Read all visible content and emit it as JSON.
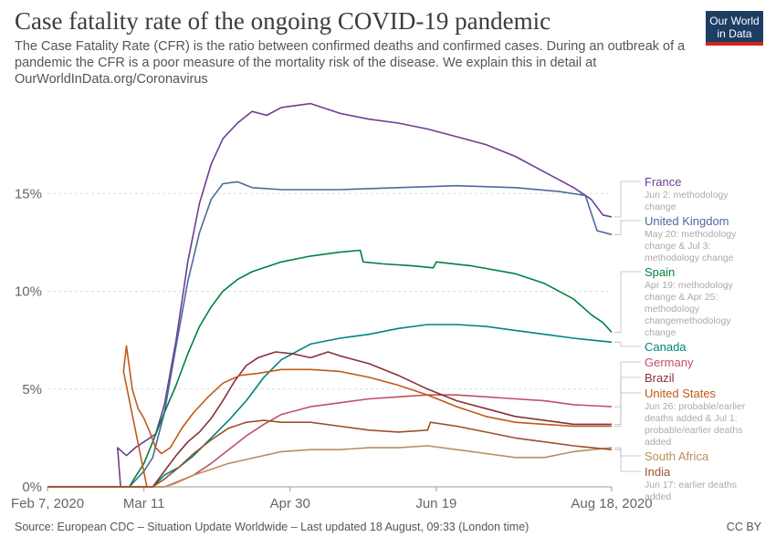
{
  "header": {
    "title": "Case fatality rate of the ongoing COVID-19 pandemic",
    "subtitle": "The Case Fatality Rate (CFR) is the ratio between confirmed deaths and confirmed cases. During an outbreak of a pandemic the CFR is a poor measure of the mortality risk of the disease. We explain this in detail at OurWorldInData.org/Coronavirus",
    "logo_line1": "Our World",
    "logo_line2": "in Data"
  },
  "footer": {
    "source": "Source: European CDC – Situation Update Worldwide – Last updated 18 August, 09:33 (London time)",
    "license": "CC BY"
  },
  "chart_data": {
    "type": "line",
    "title": "Case fatality rate of the ongoing COVID-19 pandemic",
    "xlabel": "",
    "ylabel": "",
    "x_unit": "days since Feb 7, 2020",
    "xlim": [
      0,
      193
    ],
    "ylim": [
      0,
      20
    ],
    "y_ticks": [
      0,
      5,
      10,
      15
    ],
    "y_tick_labels": [
      "0%",
      "5%",
      "10%",
      "15%"
    ],
    "x_ticks": [
      {
        "day": 0,
        "label": "Feb 7, 2020"
      },
      {
        "day": 33,
        "label": "Mar 11"
      },
      {
        "day": 83,
        "label": "Apr 30"
      },
      {
        "day": 133,
        "label": "Jun 19"
      },
      {
        "day": 193,
        "label": "Aug 18, 2020"
      }
    ],
    "grid": true,
    "series": [
      {
        "name": "France",
        "color": "#6d3e91",
        "points": [
          [
            0,
            0
          ],
          [
            25,
            0
          ],
          [
            24,
            2
          ],
          [
            27,
            1.6
          ],
          [
            30,
            2.0
          ],
          [
            33,
            2.3
          ],
          [
            37,
            2.7
          ],
          [
            40,
            4.2
          ],
          [
            44,
            7.5
          ],
          [
            48,
            11.5
          ],
          [
            52,
            14.5
          ],
          [
            56,
            16.5
          ],
          [
            60,
            17.8
          ],
          [
            65,
            18.6
          ],
          [
            70,
            19.2
          ],
          [
            75,
            19.0
          ],
          [
            80,
            19.4
          ],
          [
            90,
            19.6
          ],
          [
            100,
            19.1
          ],
          [
            110,
            18.8
          ],
          [
            120,
            18.6
          ],
          [
            130,
            18.3
          ],
          [
            140,
            17.9
          ],
          [
            150,
            17.5
          ],
          [
            160,
            16.9
          ],
          [
            170,
            16.1
          ],
          [
            180,
            15.3
          ],
          [
            186,
            14.7
          ],
          [
            190,
            13.9
          ],
          [
            193,
            13.8
          ]
        ],
        "annotation": [
          "Jun 2: methodology",
          "change"
        ]
      },
      {
        "name": "United Kingdom",
        "color": "#4c6a9c",
        "points": [
          [
            0,
            0
          ],
          [
            28,
            0
          ],
          [
            33,
            0.8
          ],
          [
            36,
            1.5
          ],
          [
            40,
            3.8
          ],
          [
            44,
            7.2
          ],
          [
            48,
            10.5
          ],
          [
            52,
            13.0
          ],
          [
            56,
            14.7
          ],
          [
            60,
            15.5
          ],
          [
            65,
            15.6
          ],
          [
            70,
            15.3
          ],
          [
            80,
            15.2
          ],
          [
            100,
            15.2
          ],
          [
            120,
            15.3
          ],
          [
            140,
            15.4
          ],
          [
            160,
            15.3
          ],
          [
            175,
            15.1
          ],
          [
            184,
            14.9
          ],
          [
            188,
            13.1
          ],
          [
            193,
            12.9
          ]
        ],
        "annotation": [
          "May 20: methodology",
          "change & Jul 3:",
          "methodology change"
        ]
      },
      {
        "name": "Spain",
        "color": "#00813f",
        "points": [
          [
            0,
            0
          ],
          [
            28,
            0
          ],
          [
            30,
            0.5
          ],
          [
            33,
            1.2
          ],
          [
            36,
            2.3
          ],
          [
            40,
            3.8
          ],
          [
            44,
            5.2
          ],
          [
            48,
            6.8
          ],
          [
            52,
            8.2
          ],
          [
            56,
            9.2
          ],
          [
            60,
            10.0
          ],
          [
            65,
            10.6
          ],
          [
            70,
            11.0
          ],
          [
            80,
            11.5
          ],
          [
            90,
            11.8
          ],
          [
            100,
            12.0
          ],
          [
            107,
            12.1
          ],
          [
            108,
            11.5
          ],
          [
            115,
            11.4
          ],
          [
            125,
            11.3
          ],
          [
            132,
            11.2
          ],
          [
            133,
            11.5
          ],
          [
            145,
            11.3
          ],
          [
            160,
            10.9
          ],
          [
            170,
            10.4
          ],
          [
            180,
            9.6
          ],
          [
            186,
            8.8
          ],
          [
            190,
            8.4
          ],
          [
            193,
            7.9
          ]
        ],
        "annotation": [
          "Apr 19: methodology",
          "change & Apr 25:",
          "methodology",
          "changemethodology",
          "change"
        ]
      },
      {
        "name": "Canada",
        "color": "#00847e",
        "points": [
          [
            0,
            0
          ],
          [
            36,
            0
          ],
          [
            40,
            0.6
          ],
          [
            45,
            1.0
          ],
          [
            50,
            1.6
          ],
          [
            56,
            2.5
          ],
          [
            62,
            3.4
          ],
          [
            68,
            4.4
          ],
          [
            74,
            5.6
          ],
          [
            80,
            6.5
          ],
          [
            90,
            7.3
          ],
          [
            100,
            7.6
          ],
          [
            110,
            7.8
          ],
          [
            120,
            8.1
          ],
          [
            130,
            8.3
          ],
          [
            140,
            8.3
          ],
          [
            150,
            8.2
          ],
          [
            160,
            8.0
          ],
          [
            170,
            7.8
          ],
          [
            180,
            7.6
          ],
          [
            193,
            7.4
          ]
        ],
        "annotation": []
      },
      {
        "name": "Germany",
        "color": "#c15065",
        "points": [
          [
            0,
            0
          ],
          [
            40,
            0
          ],
          [
            44,
            0.2
          ],
          [
            50,
            0.6
          ],
          [
            56,
            1.2
          ],
          [
            62,
            1.9
          ],
          [
            68,
            2.6
          ],
          [
            74,
            3.2
          ],
          [
            80,
            3.7
          ],
          [
            90,
            4.1
          ],
          [
            100,
            4.3
          ],
          [
            110,
            4.5
          ],
          [
            120,
            4.6
          ],
          [
            130,
            4.7
          ],
          [
            140,
            4.7
          ],
          [
            150,
            4.6
          ],
          [
            160,
            4.5
          ],
          [
            170,
            4.4
          ],
          [
            180,
            4.2
          ],
          [
            193,
            4.1
          ]
        ],
        "annotation": []
      },
      {
        "name": "Brazil",
        "color": "#883039",
        "points": [
          [
            0,
            0
          ],
          [
            36,
            0
          ],
          [
            40,
            0.8
          ],
          [
            44,
            1.6
          ],
          [
            48,
            2.3
          ],
          [
            52,
            2.8
          ],
          [
            56,
            3.5
          ],
          [
            60,
            4.4
          ],
          [
            64,
            5.4
          ],
          [
            68,
            6.2
          ],
          [
            72,
            6.6
          ],
          [
            78,
            6.9
          ],
          [
            84,
            6.8
          ],
          [
            90,
            6.6
          ],
          [
            96,
            6.9
          ],
          [
            100,
            6.7
          ],
          [
            110,
            6.3
          ],
          [
            120,
            5.7
          ],
          [
            130,
            5.0
          ],
          [
            140,
            4.4
          ],
          [
            150,
            4.0
          ],
          [
            160,
            3.6
          ],
          [
            170,
            3.4
          ],
          [
            180,
            3.2
          ],
          [
            193,
            3.2
          ]
        ],
        "annotation": []
      },
      {
        "name": "United States",
        "color": "#c05917",
        "points": [
          [
            0,
            0
          ],
          [
            34,
            0
          ],
          [
            26,
            5.9
          ],
          [
            27,
            7.2
          ],
          [
            29,
            5.0
          ],
          [
            31,
            4.0
          ],
          [
            33,
            3.5
          ],
          [
            35,
            2.8
          ],
          [
            37,
            2.0
          ],
          [
            39,
            1.7
          ],
          [
            42,
            2.0
          ],
          [
            46,
            3.0
          ],
          [
            50,
            3.8
          ],
          [
            55,
            4.6
          ],
          [
            60,
            5.3
          ],
          [
            66,
            5.7
          ],
          [
            72,
            5.8
          ],
          [
            80,
            6.0
          ],
          [
            90,
            6.0
          ],
          [
            100,
            5.9
          ],
          [
            110,
            5.6
          ],
          [
            120,
            5.2
          ],
          [
            130,
            4.7
          ],
          [
            140,
            4.1
          ],
          [
            150,
            3.6
          ],
          [
            160,
            3.3
          ],
          [
            170,
            3.2
          ],
          [
            180,
            3.1
          ],
          [
            193,
            3.1
          ]
        ],
        "annotation": [
          "Jun 26: probable/earlier",
          "deaths added & Jul 1:",
          "probable/earlier deaths",
          "added"
        ]
      },
      {
        "name": "South Africa",
        "color": "#bc8e5a",
        "points": [
          [
            0,
            0
          ],
          [
            40,
            0
          ],
          [
            45,
            0.3
          ],
          [
            50,
            0.6
          ],
          [
            56,
            0.9
          ],
          [
            62,
            1.2
          ],
          [
            68,
            1.4
          ],
          [
            74,
            1.6
          ],
          [
            80,
            1.8
          ],
          [
            90,
            1.9
          ],
          [
            100,
            1.9
          ],
          [
            110,
            2.0
          ],
          [
            120,
            2.0
          ],
          [
            130,
            2.1
          ],
          [
            140,
            1.9
          ],
          [
            150,
            1.7
          ],
          [
            160,
            1.5
          ],
          [
            170,
            1.5
          ],
          [
            180,
            1.8
          ],
          [
            193,
            2.0
          ]
        ],
        "annotation": []
      },
      {
        "name": "India",
        "color": "#9a5129",
        "points": [
          [
            0,
            0
          ],
          [
            36,
            0
          ],
          [
            40,
            0.4
          ],
          [
            45,
            1.0
          ],
          [
            50,
            1.7
          ],
          [
            56,
            2.4
          ],
          [
            62,
            3.0
          ],
          [
            68,
            3.3
          ],
          [
            74,
            3.4
          ],
          [
            80,
            3.3
          ],
          [
            90,
            3.3
          ],
          [
            100,
            3.1
          ],
          [
            110,
            2.9
          ],
          [
            120,
            2.8
          ],
          [
            130,
            2.9
          ],
          [
            131,
            3.3
          ],
          [
            140,
            3.1
          ],
          [
            150,
            2.8
          ],
          [
            160,
            2.5
          ],
          [
            170,
            2.3
          ],
          [
            180,
            2.1
          ],
          [
            193,
            1.9
          ]
        ],
        "annotation": [
          "Jun 17: earlier deaths",
          "added"
        ]
      }
    ]
  }
}
